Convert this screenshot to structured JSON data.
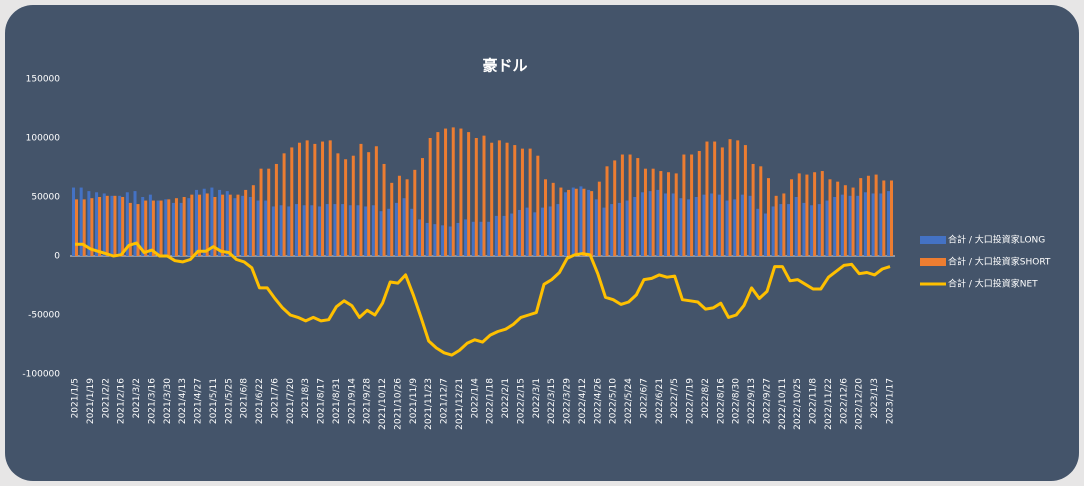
{
  "chart_data": {
    "type": "bar_line",
    "title": "豪ドル",
    "categories": [
      "2021/1/5",
      null,
      "2021/1/19",
      null,
      "2021/2/2",
      null,
      "2021/2/16",
      null,
      "2021/3/2",
      null,
      "2021/3/16",
      null,
      "2021/3/30",
      null,
      "2021/4/13",
      null,
      "2021/4/27",
      null,
      "2021/5/11",
      null,
      "2021/5/25",
      null,
      "2021/6/8",
      null,
      "2021/6/22",
      null,
      "2021/7/6",
      null,
      "2021/7/20",
      null,
      "2021/8/3",
      null,
      "2021/8/17",
      null,
      "2021/8/31",
      null,
      "2021/9/14",
      null,
      "2021/9/28",
      null,
      "2021/10/12",
      null,
      "2021/10/26",
      null,
      "2021/11/9",
      null,
      "2021/11/23",
      null,
      "2021/12/7",
      null,
      "2021/12/21",
      null,
      "2022/1/4",
      null,
      "2022/1/18",
      null,
      "2022/2/1",
      null,
      "2022/2/15",
      null,
      "2022/3/1",
      null,
      "2022/3/15",
      null,
      "2022/3/29",
      null,
      "2022/4/12",
      null,
      "2022/4/26",
      null,
      "2022/5/10",
      null,
      "2022/5/24",
      null,
      "2022/6/7",
      null,
      "2022/6/21",
      null,
      "2022/7/5",
      null,
      "2022/7/19",
      null,
      "2022/8/2",
      null,
      "2022/8/16",
      null,
      "2022/8/30",
      null,
      "2022/9/13",
      null,
      "2022/9/27",
      null,
      "2022/10/11",
      null,
      "2022/10/25",
      null,
      "2022/11/8",
      null,
      "2022/11/22",
      null,
      "2022/12/6",
      null,
      "2022/12/20",
      null,
      "2023/1/3",
      null,
      "2023/1/17"
    ],
    "series": [
      {
        "name": "合計 / 大口投資家LONG",
        "color": "#4472c4",
        "kind": "bar",
        "values": [
          58000,
          58000,
          55000,
          54000,
          53000,
          51000,
          51000,
          54000,
          55000,
          50000,
          52000,
          47000,
          48000,
          45000,
          45000,
          49000,
          56000,
          57000,
          58000,
          56000,
          55000,
          49000,
          51000,
          50000,
          47000,
          47000,
          42000,
          43000,
          42000,
          44000,
          43000,
          43000,
          42000,
          44000,
          44000,
          44000,
          43000,
          43000,
          42000,
          43000,
          38000,
          40000,
          45000,
          49000,
          40000,
          31000,
          28000,
          27000,
          26000,
          25000,
          28000,
          31000,
          29000,
          29000,
          29000,
          34000,
          34000,
          36000,
          39000,
          41000,
          37000,
          41000,
          42000,
          44000,
          54000,
          58000,
          59000,
          56000,
          48000,
          41000,
          44000,
          45000,
          47000,
          50000,
          54000,
          55000,
          56000,
          53000,
          53000,
          49000,
          48000,
          50000,
          52000,
          53000,
          52000,
          47000,
          48000,
          52000,
          51000,
          40000,
          36000,
          42000,
          44000,
          44000,
          50000,
          45000,
          43000,
          44000,
          47000,
          50000,
          52000,
          51000,
          51000,
          54000,
          53000,
          53000,
          55000
        ]
      },
      {
        "name": "合計 / 大口投資家SHORT",
        "color": "#ed7d31",
        "kind": "bar",
        "values": [
          48000,
          48000,
          49000,
          50000,
          51000,
          51000,
          50000,
          45000,
          44000,
          47000,
          47000,
          47000,
          48000,
          49000,
          50000,
          52000,
          52000,
          53000,
          50000,
          52000,
          52000,
          52000,
          56000,
          60000,
          74000,
          74000,
          78000,
          87000,
          92000,
          96000,
          98000,
          95000,
          97000,
          98000,
          87000,
          82000,
          85000,
          95000,
          88000,
          93000,
          78000,
          62000,
          68000,
          65000,
          73000,
          83000,
          100000,
          105000,
          108000,
          109000,
          108000,
          105000,
          100000,
          102000,
          96000,
          98000,
          96000,
          94000,
          91000,
          91000,
          85000,
          65000,
          62000,
          58000,
          56000,
          57000,
          57000,
          55000,
          63000,
          76000,
          81000,
          86000,
          86000,
          83000,
          74000,
          74000,
          72000,
          71000,
          70000,
          86000,
          86000,
          89000,
          97000,
          97000,
          92000,
          99000,
          98000,
          94000,
          78000,
          76000,
          66000,
          51000,
          53000,
          65000,
          70000,
          69000,
          71000,
          72000,
          65000,
          63000,
          60000,
          58000,
          66000,
          68000,
          69000,
          64000,
          64000
        ]
      },
      {
        "name": "合計 / 大口投資家NET",
        "color": "#ffc000",
        "kind": "line",
        "values": [
          10000,
          10000,
          6000,
          4000,
          2000,
          0,
          1000,
          9000,
          11000,
          3000,
          5000,
          0,
          0,
          -4000,
          -5000,
          -3000,
          4000,
          4000,
          8000,
          4000,
          3000,
          -3000,
          -5000,
          -10000,
          -27000,
          -27000,
          -36000,
          -44000,
          -50000,
          -52000,
          -55000,
          -52000,
          -55000,
          -54000,
          -43000,
          -38000,
          -42000,
          -52000,
          -46000,
          -50000,
          -40000,
          -22000,
          -23000,
          -16000,
          -33000,
          -52000,
          -72000,
          -78000,
          -82000,
          -84000,
          -80000,
          -74000,
          -71000,
          -73000,
          -67000,
          -64000,
          -62000,
          -58000,
          -52000,
          -50000,
          -48000,
          -24000,
          -20000,
          -14000,
          -2000,
          1000,
          2000,
          1000,
          -15000,
          -35000,
          -37000,
          -41000,
          -39000,
          -33000,
          -20000,
          -19000,
          -16000,
          -18000,
          -17000,
          -37000,
          -38000,
          -39000,
          -45000,
          -44000,
          -40000,
          -52000,
          -50000,
          -42000,
          -27000,
          -36000,
          -30000,
          -9000,
          -9000,
          -21000,
          -20000,
          -24000,
          -28000,
          -28000,
          -18000,
          -13000,
          -8000,
          -7000,
          -15000,
          -14000,
          -16000,
          -11000,
          -9000
        ]
      }
    ],
    "ylim": [
      -100000,
      150000
    ],
    "yticks": [
      -100000,
      -50000,
      0,
      50000,
      100000,
      150000
    ],
    "grid": false,
    "legend": "right"
  }
}
